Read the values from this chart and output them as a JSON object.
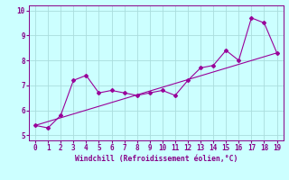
{
  "x": [
    0,
    1,
    2,
    3,
    4,
    5,
    6,
    7,
    8,
    9,
    10,
    11,
    12,
    13,
    14,
    15,
    16,
    17,
    18,
    19
  ],
  "y": [
    5.4,
    5.3,
    5.8,
    7.2,
    7.4,
    6.7,
    6.8,
    6.7,
    6.6,
    6.7,
    6.8,
    6.6,
    7.2,
    7.7,
    7.8,
    8.4,
    8.0,
    9.7,
    9.5,
    8.3
  ],
  "line_color": "#990099",
  "bg_color": "#ccffff",
  "grid_color": "#aadddd",
  "xlabel": "Windchill (Refroidissement éolien,°C)",
  "xlim": [
    -0.5,
    19.5
  ],
  "ylim": [
    4.8,
    10.2
  ],
  "yticks": [
    5,
    6,
    7,
    8,
    9,
    10
  ],
  "xticks": [
    0,
    1,
    2,
    3,
    4,
    5,
    6,
    7,
    8,
    9,
    10,
    11,
    12,
    13,
    14,
    15,
    16,
    17,
    18,
    19
  ],
  "tick_color": "#880088",
  "label_color": "#880088",
  "font_size_xlabel": 5.8,
  "font_size_tick": 5.5,
  "marker": "D",
  "marker_size": 2.0,
  "line_width": 0.8,
  "regression_start_x": 0,
  "regression_start_y": 5.4,
  "regression_end_x": 19,
  "regression_end_y": 8.3
}
